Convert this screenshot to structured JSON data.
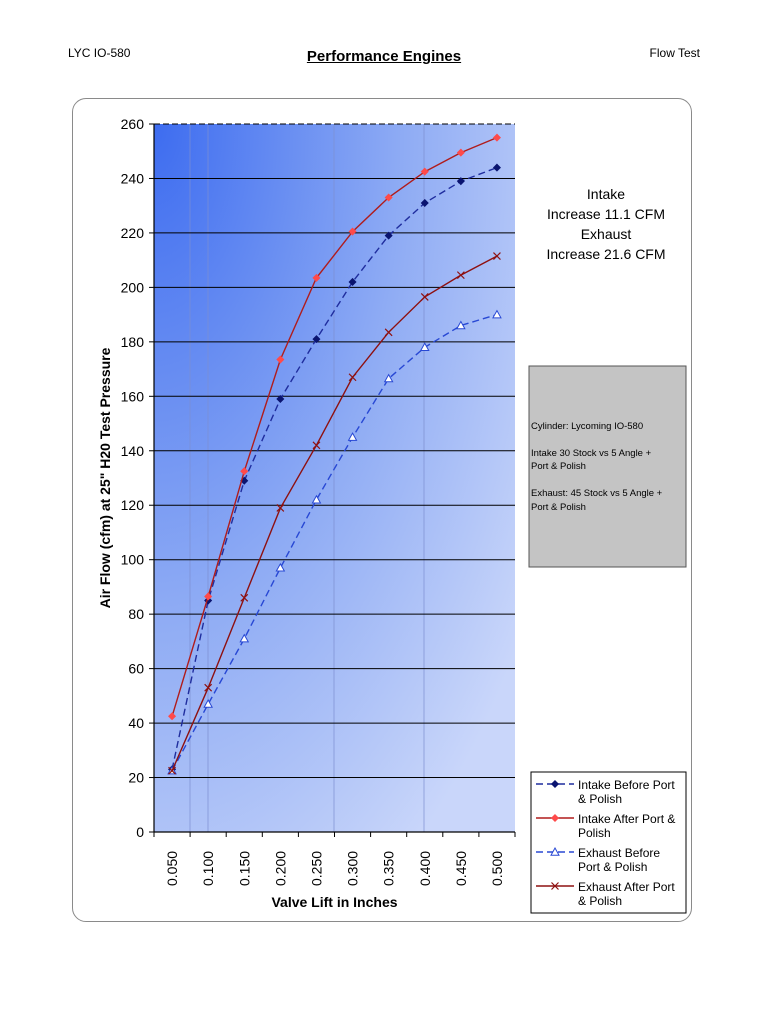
{
  "header": {
    "left": "LYC IO-580",
    "title": "Performance Engines",
    "right": "Flow Test"
  },
  "chart_data": {
    "type": "line",
    "xlabel": "Valve Lift in Inches",
    "ylabel": "Air Flow (cfm) at 25\" H20 Test Pressure",
    "categories": [
      "0.050",
      "0.100",
      "0.150",
      "0.200",
      "0.250",
      "0.300",
      "0.350",
      "0.400",
      "0.450",
      "0.500"
    ],
    "ylim": [
      0,
      260
    ],
    "ytick_step": 20,
    "grid": true,
    "legend_position": "bottom-right",
    "colors": {
      "intake": "#1f2d9e",
      "after": "#b01c1c",
      "plot_bg_light": "#c6d4fa",
      "plot_bg_dark": "#3f6ff0"
    },
    "series": [
      {
        "name": "Intake Before Port & Polish",
        "color": "#1f2d9e",
        "dash": true,
        "marker": "diamond",
        "values": [
          23,
          85,
          129,
          159,
          181,
          202,
          219,
          231,
          239,
          244
        ]
      },
      {
        "name": "Intake After Port & Polish",
        "color": "#b01c1c",
        "dash": false,
        "marker": "diamond-red",
        "values": [
          42.5,
          86.5,
          132.5,
          173.5,
          203.5,
          220.5,
          233,
          242.5,
          249.5,
          255
        ]
      },
      {
        "name": "Exhaust Before Port & Polish",
        "color": "#2848d4",
        "dash": true,
        "marker": "triangle",
        "values": [
          22.5,
          47,
          71,
          97,
          122,
          145,
          166.5,
          178,
          186,
          190
        ]
      },
      {
        "name": "Exhaust After Port & Polish",
        "color": "#8e1010",
        "dash": false,
        "marker": "x",
        "values": [
          22.5,
          53,
          86,
          119,
          142,
          167,
          183.5,
          196.5,
          204.5,
          211.5
        ]
      }
    ],
    "annotation_lines": [
      "Intake",
      "Increase 11.1 CFM",
      "Exhaust",
      "Increase 21.6 CFM"
    ],
    "note_box": {
      "line1": "Cylinder: Lycoming IO-580",
      "line2a": "Intake 30 Stock vs 5 Angle +",
      "line2b": "Port & Polish",
      "line3a": "Exhaust: 45 Stock vs 5 Angle +",
      "line3b": "Port & Polish"
    },
    "legend_lines": [
      [
        "Intake Before Port",
        "& Polish"
      ],
      [
        "Intake After Port &",
        "Polish"
      ],
      [
        "Exhaust Before",
        "Port & Polish"
      ],
      [
        "Exhaust After Port",
        "& Polish"
      ]
    ]
  }
}
